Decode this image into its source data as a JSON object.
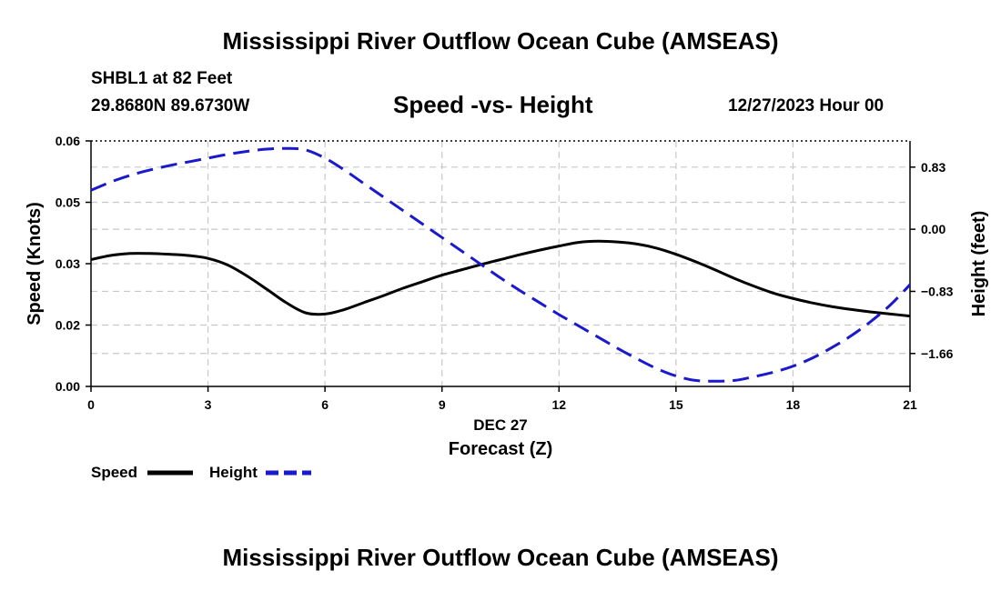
{
  "header": {
    "title": "Mississippi River Outflow Ocean Cube (AMSEAS)",
    "station": "SHBL1 at 82 Feet",
    "coordinates": "29.8680N  89.6730W",
    "subtitle": "Speed -vs- Height",
    "datetime": "12/27/2023 Hour 00"
  },
  "footer": {
    "title": "Mississippi River Outflow Ocean Cube (AMSEAS)"
  },
  "chart_data": {
    "type": "line",
    "xlabel_date": "DEC 27",
    "xlabel": "Forecast (Z)",
    "ylabel": "Speed (Knots)",
    "ylabel_right": "Height (feet)",
    "xlim": [
      0,
      21
    ],
    "ylim": [
      0,
      0.06
    ],
    "ylim_right": [
      -2.1,
      1.18
    ],
    "x_ticks": [
      0,
      3,
      6,
      9,
      12,
      15,
      18,
      21
    ],
    "x_tick_labels": [
      "0",
      "3",
      "6",
      "9",
      "12",
      "15",
      "18",
      "21"
    ],
    "y_ticks": [
      0,
      0.015,
      0.03,
      0.045,
      0.06
    ],
    "y_tick_labels": [
      "0.00",
      "0.02",
      "0.03",
      "0.05",
      "0.06"
    ],
    "y_right_ticks": [
      0.83,
      0.0,
      -0.83,
      -1.66
    ],
    "y_right_tick_labels": [
      "0.83",
      "0.00",
      "−0.83",
      "−1.66"
    ],
    "grid": true,
    "series": [
      {
        "name": "Speed",
        "axis": "left",
        "color": "#000000",
        "dash": "solid",
        "x": [
          0,
          0.5,
          1,
          1.5,
          2,
          2.5,
          3,
          3.5,
          4,
          4.5,
          5,
          5.5,
          6,
          6.5,
          7,
          7.5,
          8,
          8.5,
          9,
          9.5,
          10,
          10.5,
          11,
          11.5,
          12,
          12.5,
          13,
          13.5,
          14,
          14.5,
          15,
          15.5,
          16,
          16.5,
          17,
          17.5,
          18,
          18.5,
          19,
          19.5,
          20,
          20.5,
          21
        ],
        "values": [
          0.031,
          0.032,
          0.0325,
          0.0325,
          0.0323,
          0.032,
          0.0313,
          0.0297,
          0.027,
          0.0238,
          0.0205,
          0.018,
          0.0177,
          0.0188,
          0.0205,
          0.0222,
          0.024,
          0.0256,
          0.0272,
          0.0285,
          0.0298,
          0.031,
          0.0322,
          0.0333,
          0.0343,
          0.0352,
          0.0355,
          0.0353,
          0.0348,
          0.0338,
          0.0323,
          0.0305,
          0.0285,
          0.0264,
          0.0245,
          0.0228,
          0.0215,
          0.0204,
          0.0195,
          0.0188,
          0.0182,
          0.0177,
          0.0172
        ]
      },
      {
        "name": "Height",
        "axis": "right",
        "color": "#1a1acc",
        "dash": "dashed",
        "x": [
          0,
          0.5,
          1,
          1.5,
          2,
          2.5,
          3,
          3.5,
          4,
          4.5,
          5,
          5.5,
          6,
          6.5,
          7,
          7.5,
          8,
          8.5,
          9,
          9.5,
          10,
          10.5,
          11,
          11.5,
          12,
          12.5,
          13,
          13.5,
          14,
          14.5,
          15,
          15.5,
          16,
          16.5,
          17,
          17.5,
          18,
          18.5,
          19,
          19.5,
          20,
          20.5,
          21
        ],
        "values": [
          0.52,
          0.63,
          0.72,
          0.79,
          0.85,
          0.9,
          0.95,
          1.0,
          1.04,
          1.07,
          1.08,
          1.06,
          0.95,
          0.79,
          0.61,
          0.43,
          0.25,
          0.07,
          -0.11,
          -0.29,
          -0.47,
          -0.65,
          -0.82,
          -0.98,
          -1.14,
          -1.29,
          -1.44,
          -1.59,
          -1.73,
          -1.86,
          -1.96,
          -2.02,
          -2.03,
          -2.02,
          -1.97,
          -1.91,
          -1.83,
          -1.72,
          -1.58,
          -1.42,
          -1.23,
          -1.01,
          -0.74
        ]
      }
    ],
    "legend": [
      {
        "label": "Speed",
        "color": "#000000",
        "dash": "solid"
      },
      {
        "label": "Height",
        "color": "#1a1acc",
        "dash": "dashed"
      }
    ],
    "legend_position": "bottom-left"
  }
}
